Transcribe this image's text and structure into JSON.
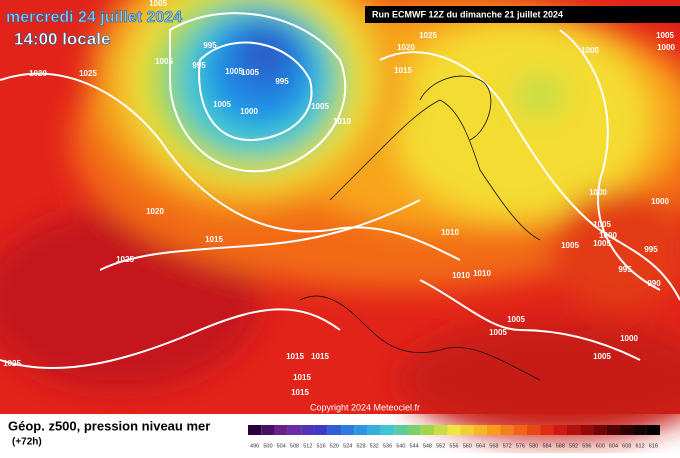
{
  "header": {
    "date": "mercredi 24 juillet 2024",
    "time": "14:00 locale",
    "run": "Run ECMWF 12Z du dimanche 21 juillet 2024"
  },
  "map": {
    "pressure_labels": [
      1005,
      995,
      995,
      1005,
      1005,
      995,
      1005,
      1000,
      1005,
      1010,
      1005,
      1020,
      1025,
      1020,
      1015,
      1025,
      1025,
      1025,
      1020,
      1015,
      1000,
      1005,
      1000,
      1000,
      1000,
      1005,
      1000,
      1005,
      1005,
      995,
      995,
      990,
      1010,
      1010,
      1010,
      1005,
      1005,
      1000,
      1005,
      1015,
      1015,
      1015,
      1015
    ]
  },
  "footer": {
    "title": "Géop. z500, pression niveau mer",
    "lead": "(+72h)",
    "copyright": "Copyright 2024 Meteociel.fr",
    "scale": [
      496,
      500,
      504,
      508,
      512,
      516,
      520,
      524,
      528,
      532,
      536,
      540,
      544,
      548,
      552,
      556,
      560,
      564,
      568,
      572,
      576,
      580,
      584,
      588,
      592,
      596,
      600,
      604,
      608,
      612,
      616
    ]
  }
}
